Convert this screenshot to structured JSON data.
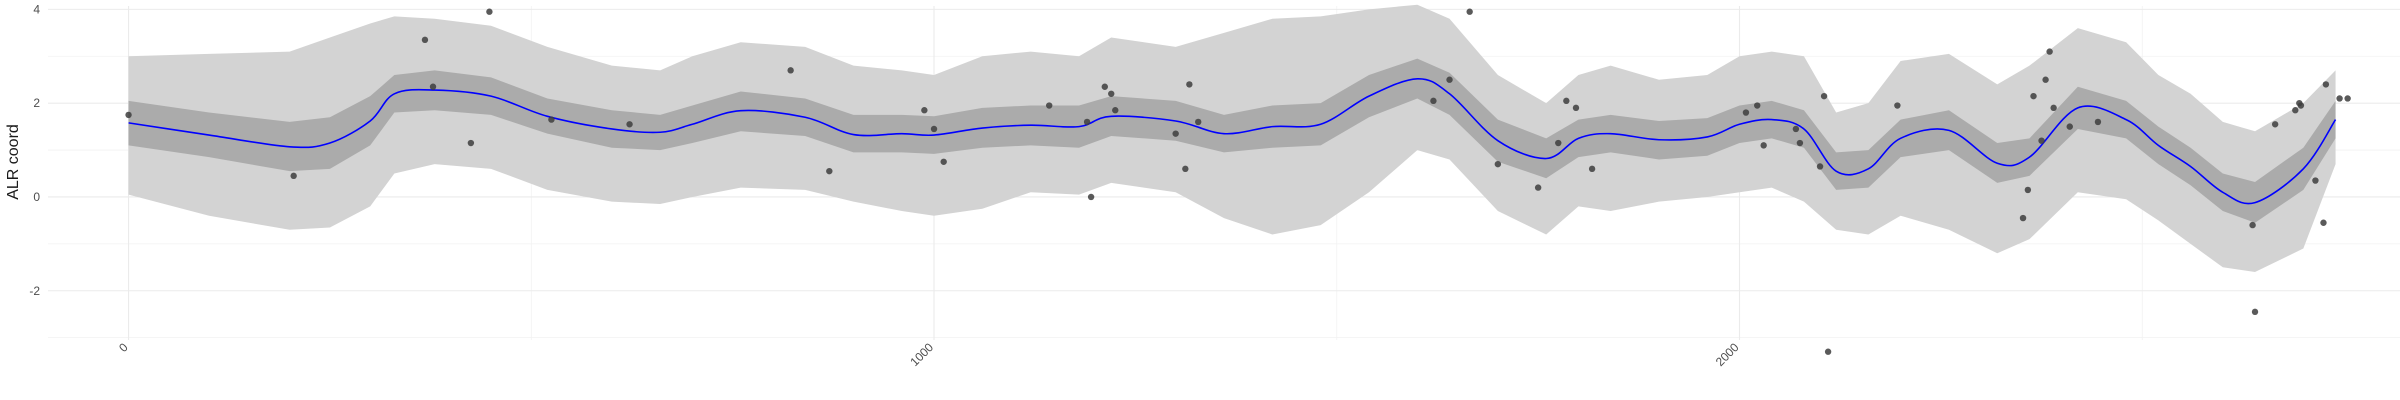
{
  "chart_data": {
    "type": "line",
    "xlabel": "",
    "ylabel": "ALR coord",
    "xlim": [
      -100,
      2820
    ],
    "ylim": [
      -3.05,
      4.2
    ],
    "x_ticks": [
      0,
      1000,
      2000
    ],
    "x_tick_labels": [
      "0",
      "1000",
      "2000"
    ],
    "y_ticks": [
      -2,
      0,
      2,
      4
    ],
    "y_tick_labels": [
      "-2",
      "0",
      "2",
      "4"
    ],
    "grid": true,
    "legend": "none",
    "colors": {
      "outer_band": "#d3d3d3",
      "inner_band": "#ababab",
      "mean_line": "#0000ff",
      "points": "#3d3d3d"
    },
    "series": [
      {
        "type": "line",
        "x": [
          0,
          100,
          200,
          250,
          300,
          330,
          380,
          450,
          520,
          600,
          660,
          700,
          760,
          840,
          900,
          960,
          1000,
          1060,
          1120,
          1180,
          1220,
          1300,
          1360,
          1420,
          1480,
          1540,
          1600,
          1640,
          1700,
          1760,
          1800,
          1840,
          1900,
          1960,
          2000,
          2040,
          2080,
          2120,
          2160,
          2200,
          2260,
          2320,
          2360,
          2420,
          2480,
          2520,
          2560,
          2600,
          2640,
          2700,
          2740
        ],
        "mean": [
          1.58,
          1.32,
          1.07,
          1.15,
          1.62,
          2.2,
          2.28,
          2.15,
          1.72,
          1.45,
          1.38,
          1.55,
          1.84,
          1.7,
          1.33,
          1.35,
          1.32,
          1.47,
          1.53,
          1.5,
          1.72,
          1.62,
          1.35,
          1.5,
          1.55,
          2.15,
          2.52,
          2.2,
          1.2,
          0.82,
          1.25,
          1.35,
          1.22,
          1.28,
          1.55,
          1.65,
          1.45,
          0.55,
          0.6,
          1.25,
          1.42,
          0.72,
          0.85,
          1.9,
          1.65,
          1.1,
          0.65,
          0.1,
          -0.12,
          0.6,
          1.65
        ],
        "outer_lower": [
          0.05,
          -0.4,
          -0.7,
          -0.65,
          -0.2,
          0.5,
          0.7,
          0.6,
          0.15,
          -0.1,
          -0.15,
          0.0,
          0.2,
          0.15,
          -0.1,
          -0.3,
          -0.4,
          -0.25,
          0.1,
          0.05,
          0.3,
          0.1,
          -0.45,
          -0.8,
          -0.6,
          0.1,
          1.0,
          0.8,
          -0.3,
          -0.8,
          -0.2,
          -0.3,
          -0.1,
          0.0,
          0.1,
          0.2,
          -0.1,
          -0.7,
          -0.8,
          -0.4,
          -0.7,
          -1.2,
          -0.9,
          0.1,
          -0.05,
          -0.5,
          -1.0,
          -1.5,
          -1.6,
          -1.1,
          0.7
        ],
        "outer_upper": [
          3.0,
          3.05,
          3.1,
          3.4,
          3.7,
          3.85,
          3.8,
          3.65,
          3.2,
          2.8,
          2.7,
          3.0,
          3.3,
          3.2,
          2.8,
          2.7,
          2.6,
          3.0,
          3.1,
          3.0,
          3.4,
          3.2,
          3.5,
          3.8,
          3.85,
          4.0,
          4.1,
          3.8,
          2.6,
          2.0,
          2.6,
          2.8,
          2.5,
          2.6,
          3.0,
          3.1,
          3.0,
          1.8,
          2.0,
          2.9,
          3.05,
          2.4,
          2.8,
          3.6,
          3.3,
          2.6,
          2.2,
          1.6,
          1.4,
          2.0,
          2.7
        ],
        "inner_lower": [
          1.1,
          0.85,
          0.55,
          0.6,
          1.1,
          1.8,
          1.85,
          1.75,
          1.35,
          1.05,
          1.0,
          1.15,
          1.4,
          1.3,
          0.95,
          0.95,
          0.92,
          1.05,
          1.1,
          1.05,
          1.3,
          1.2,
          0.95,
          1.05,
          1.1,
          1.7,
          2.1,
          1.75,
          0.75,
          0.4,
          0.85,
          0.95,
          0.8,
          0.88,
          1.15,
          1.25,
          1.05,
          0.15,
          0.2,
          0.85,
          1.0,
          0.3,
          0.45,
          1.45,
          1.25,
          0.7,
          0.25,
          -0.3,
          -0.55,
          0.15,
          1.25
        ],
        "inner_upper": [
          2.05,
          1.8,
          1.6,
          1.7,
          2.15,
          2.6,
          2.7,
          2.55,
          2.1,
          1.85,
          1.75,
          1.95,
          2.25,
          2.1,
          1.75,
          1.75,
          1.72,
          1.9,
          1.95,
          1.95,
          2.15,
          2.05,
          1.75,
          1.95,
          2.0,
          2.6,
          2.95,
          2.65,
          1.65,
          1.25,
          1.65,
          1.75,
          1.62,
          1.68,
          1.95,
          2.05,
          1.85,
          0.95,
          1.0,
          1.65,
          1.85,
          1.15,
          1.25,
          2.35,
          2.05,
          1.5,
          1.05,
          0.5,
          0.32,
          1.05,
          2.05
        ]
      },
      {
        "type": "scatter",
        "points": [
          [
            0,
            1.75
          ],
          [
            205,
            0.45
          ],
          [
            368,
            3.35
          ],
          [
            378,
            2.35
          ],
          [
            425,
            1.15
          ],
          [
            448,
            3.95
          ],
          [
            525,
            1.65
          ],
          [
            622,
            1.55
          ],
          [
            822,
            2.7
          ],
          [
            870,
            0.55
          ],
          [
            988,
            1.85
          ],
          [
            1000,
            1.45
          ],
          [
            1012,
            0.75
          ],
          [
            1143,
            1.95
          ],
          [
            1190,
            1.6
          ],
          [
            1195,
            0.0
          ],
          [
            1212,
            2.35
          ],
          [
            1220,
            2.2
          ],
          [
            1225,
            1.85
          ],
          [
            1300,
            1.35
          ],
          [
            1312,
            0.6
          ],
          [
            1317,
            2.4
          ],
          [
            1328,
            1.6
          ],
          [
            1620,
            2.05
          ],
          [
            1640,
            2.5
          ],
          [
            1665,
            3.95
          ],
          [
            1700,
            0.7
          ],
          [
            1750,
            0.2
          ],
          [
            1775,
            1.15
          ],
          [
            1785,
            2.05
          ],
          [
            1797,
            1.9
          ],
          [
            1817,
            0.6
          ],
          [
            2008,
            1.8
          ],
          [
            2022,
            1.95
          ],
          [
            2030,
            1.1
          ],
          [
            2070,
            1.45
          ],
          [
            2075,
            1.15
          ],
          [
            2100,
            0.65
          ],
          [
            2105,
            2.15
          ],
          [
            2110,
            -3.3
          ],
          [
            2196,
            1.95
          ],
          [
            2352,
            -0.45
          ],
          [
            2358,
            0.15
          ],
          [
            2365,
            2.15
          ],
          [
            2375,
            1.2
          ],
          [
            2380,
            2.5
          ],
          [
            2385,
            3.1
          ],
          [
            2390,
            1.9
          ],
          [
            2410,
            1.5
          ],
          [
            2445,
            1.6
          ],
          [
            2637,
            -0.6
          ],
          [
            2640,
            -2.45
          ],
          [
            2665,
            1.55
          ],
          [
            2690,
            1.85
          ],
          [
            2695,
            2.0
          ],
          [
            2697,
            1.95
          ],
          [
            2715,
            0.35
          ],
          [
            2725,
            -0.55
          ],
          [
            2728,
            2.4
          ],
          [
            2745,
            2.1
          ],
          [
            2755,
            2.1
          ]
        ]
      }
    ]
  }
}
